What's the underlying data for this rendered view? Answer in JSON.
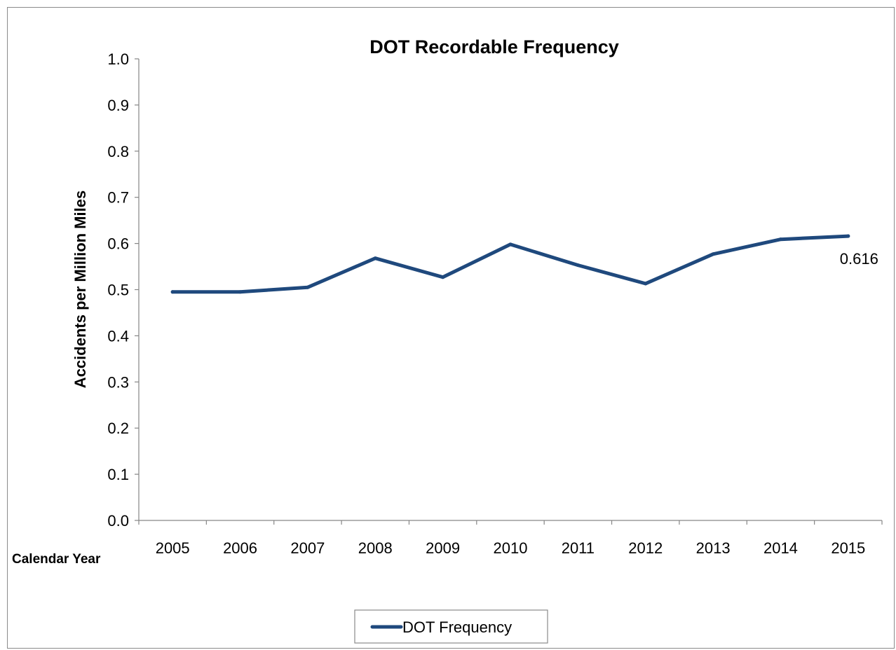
{
  "chart_data": {
    "type": "line",
    "title": "DOT Recordable Frequency",
    "xlabel": "Calendar Year",
    "ylabel": "Accidents per Million Miles",
    "categories": [
      "2005",
      "2006",
      "2007",
      "2008",
      "2009",
      "2010",
      "2011",
      "2012",
      "2013",
      "2014",
      "2015"
    ],
    "series": [
      {
        "name": "DOT Frequency",
        "color": "#1f497d",
        "values": [
          0.495,
          0.495,
          0.505,
          0.568,
          0.527,
          0.598,
          0.553,
          0.513,
          0.577,
          0.609,
          0.616
        ]
      }
    ],
    "y_ticks": [
      "0.0",
      "0.1",
      "0.2",
      "0.3",
      "0.4",
      "0.5",
      "0.6",
      "0.7",
      "0.8",
      "0.9",
      "1.0"
    ],
    "ylim": [
      0,
      1.0
    ],
    "grid": false,
    "legend_position": "bottom",
    "data_labels": [
      {
        "index": 10,
        "text": "0.616"
      }
    ]
  }
}
